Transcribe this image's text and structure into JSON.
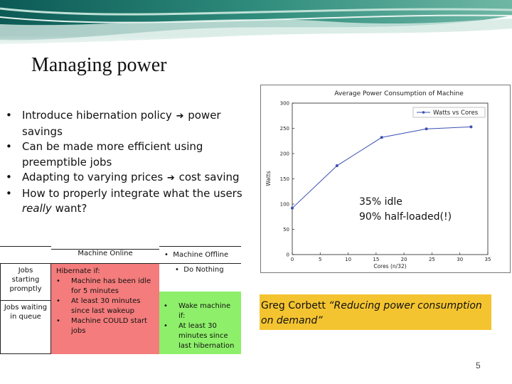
{
  "slide": {
    "title": "Managing power",
    "bullets": [
      {
        "before": "Introduce hibernation policy ",
        "after": " power savings"
      },
      {
        "text": "Can be made more efficient using preemptible jobs"
      },
      {
        "before": "Adapting to varying prices ",
        "after": " cost saving"
      },
      {
        "text": "How to properly integrate what the users ",
        "italic": "really",
        "tail": " want?"
      }
    ],
    "notes": [
      "35% idle",
      "90% half-loaded(!)"
    ],
    "quote": {
      "author": "Greg Corbett ",
      "text": "“Reducing power consumption on demand”"
    },
    "page_number": "5"
  },
  "table": {
    "header_online": "Machine Online",
    "header_offline": "Machine Offline",
    "rows": [
      {
        "label": "Jobs starting promptly",
        "online_title": "Hibernate if:",
        "online_items": [
          "Machine has been idle for 5 minutes",
          "At least 30 minutes since last wakeup",
          "Machine COULD start jobs"
        ],
        "offline_items": [
          "Do Nothing"
        ]
      },
      {
        "label": "Jobs waiting in queue",
        "offline_items": [
          "Wake machine if:",
          "At least 30 minutes since last hibernation"
        ]
      }
    ],
    "colors": {
      "hibernate": "#f47c7c",
      "wake": "#8ef06a"
    }
  },
  "chart_data": {
    "type": "line",
    "title": "Average Power Consumption of Machine",
    "xlabel": "Cores (n/32)",
    "ylabel": "Watts",
    "xlim": [
      0,
      35
    ],
    "ylim": [
      0,
      300
    ],
    "xticks": [
      0,
      5,
      10,
      15,
      20,
      25,
      30,
      35
    ],
    "yticks": [
      0,
      50,
      100,
      150,
      200,
      250,
      300
    ],
    "grid": false,
    "legend_position": "top-right",
    "series": [
      {
        "name": "Watts vs Cores",
        "color": "#3a4fb0",
        "x": [
          0,
          8,
          16,
          24,
          32
        ],
        "y": [
          92,
          176,
          232,
          249,
          253
        ]
      }
    ]
  },
  "colors": {
    "quote_bg": "#f4c430",
    "line": "#3a4fb0"
  }
}
